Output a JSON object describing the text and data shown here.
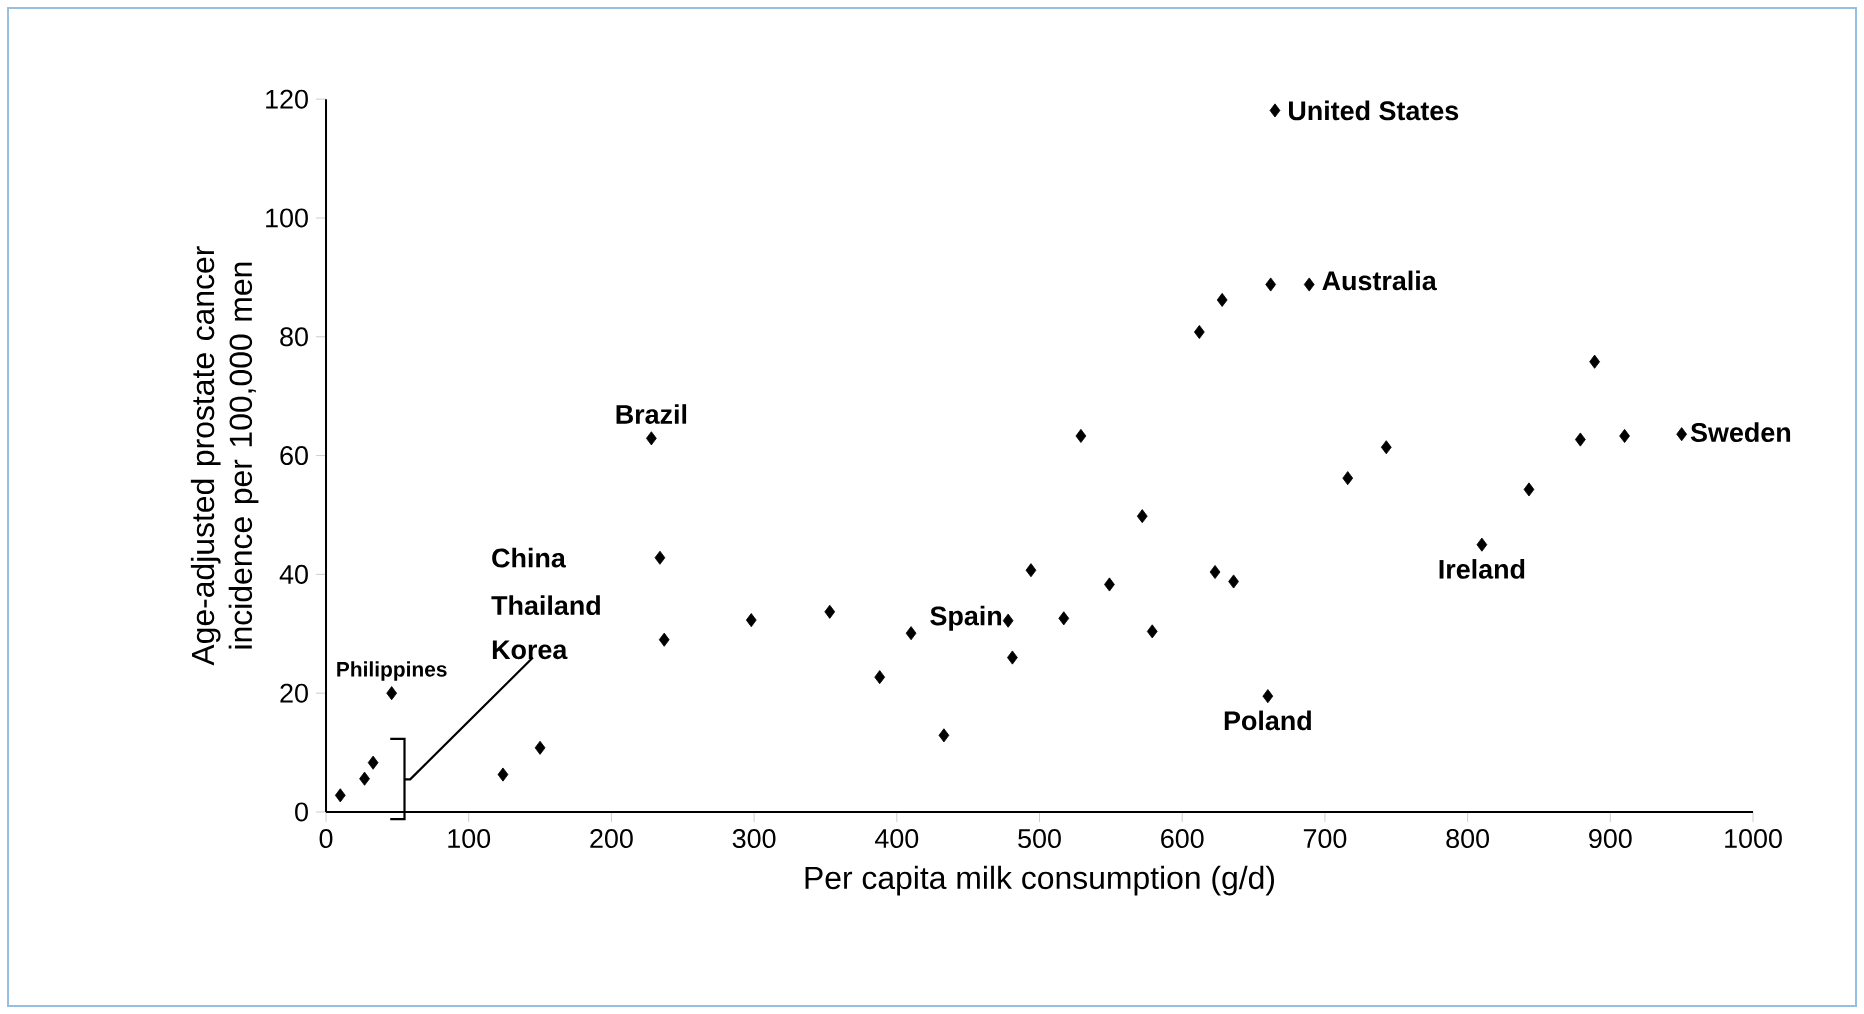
{
  "chart_data": {
    "type": "scatter",
    "xlabel": "Per capita milk consumption (g/d)",
    "ylabel": "Age-adjusted prostate cancer incidence per 100,000 men",
    "x": [
      10,
      27,
      33,
      46,
      124,
      150,
      228,
      234,
      237,
      298,
      353,
      388,
      410,
      433,
      478,
      481,
      494,
      517,
      529,
      549,
      572,
      579,
      612,
      628,
      623,
      636,
      660,
      662,
      665,
      689,
      716,
      743,
      810,
      843,
      879,
      889,
      910,
      950
    ],
    "series": [
      {
        "color": "#000000",
        "values": [
          2.8,
          5.6,
          8.3,
          20,
          6.3,
          10.8,
          62.9,
          42.8,
          29,
          32.3,
          33.7,
          22.7,
          30.1,
          12.9,
          32.2,
          26,
          40.7,
          32.6,
          63.3,
          38.3,
          49.8,
          30.4,
          80.8,
          86.2,
          40.4,
          38.8,
          19.5,
          88.8,
          118.1,
          88.8,
          56.2,
          61.4,
          45,
          54.3,
          62.7,
          75.8,
          63.3,
          63.6
        ]
      }
    ],
    "marker": "diamond",
    "xlim": [
      0,
      1000
    ],
    "xticks": [
      0,
      100,
      200,
      300,
      400,
      500,
      600,
      700,
      800,
      900,
      1000
    ],
    "ylim": [
      0,
      120
    ],
    "yticks": [
      0,
      20,
      40,
      60,
      80,
      100,
      120
    ],
    "grid": false,
    "annotations": [
      {
        "text": "Philippines",
        "x": 46,
        "y": 20
      },
      {
        "text": "Brazil",
        "x": 228,
        "y": 62.9
      },
      {
        "text": "United States",
        "x": 665,
        "y": 118.1
      },
      {
        "text": "Australia",
        "x": 689,
        "y": 88.8
      },
      {
        "text": "Spain",
        "x": 410,
        "y": 30.1
      },
      {
        "text": "Poland",
        "x": 660,
        "y": 19.5
      },
      {
        "text": "Ireland",
        "x": 810,
        "y": 45
      },
      {
        "text": "Sweden",
        "x": 950,
        "y": 63.6
      },
      "China",
      "Thailand",
      "Korea"
    ]
  }
}
